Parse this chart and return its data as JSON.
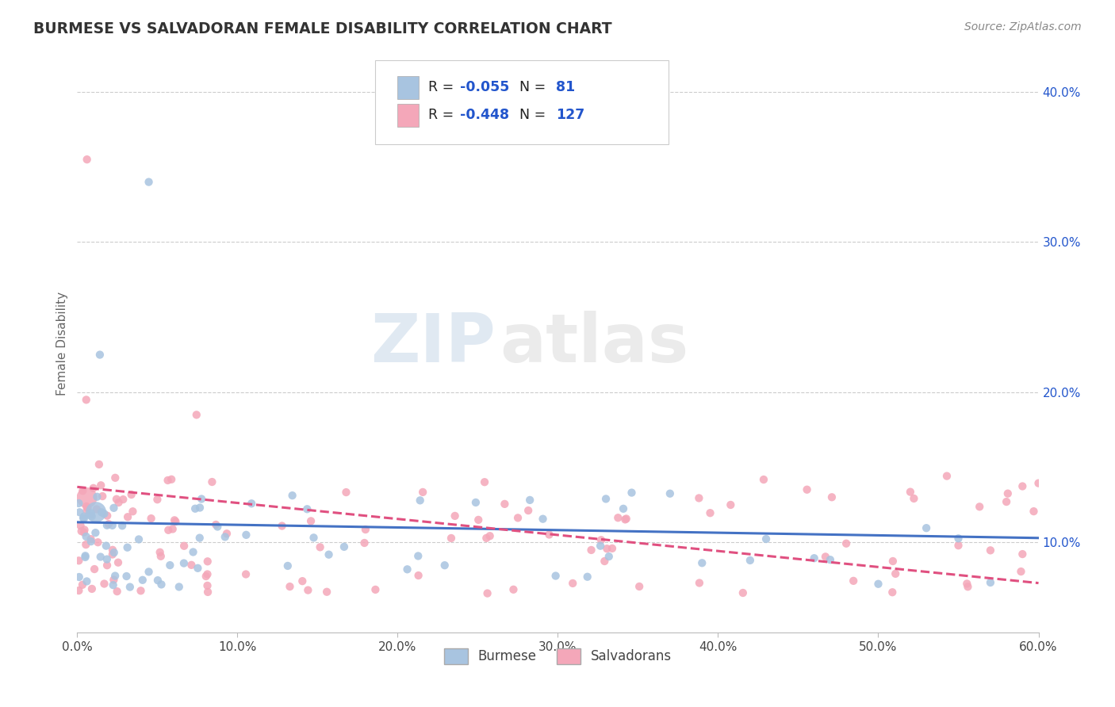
{
  "title": "BURMESE VS SALVADORAN FEMALE DISABILITY CORRELATION CHART",
  "source": "Source: ZipAtlas.com",
  "ylabel": "Female Disability",
  "xlim": [
    0.0,
    0.6
  ],
  "ylim": [
    0.04,
    0.425
  ],
  "xtick_labels": [
    "0.0%",
    "10.0%",
    "20.0%",
    "30.0%",
    "40.0%",
    "50.0%",
    "60.0%"
  ],
  "xtick_vals": [
    0.0,
    0.1,
    0.2,
    0.3,
    0.4,
    0.5,
    0.6
  ],
  "ytick_labels": [
    "10.0%",
    "20.0%",
    "30.0%",
    "40.0%"
  ],
  "ytick_vals": [
    0.1,
    0.2,
    0.3,
    0.4
  ],
  "burmese_color": "#a8c4e0",
  "salvadoran_color": "#f4a7b9",
  "burmese_line_color": "#4472c4",
  "salvadoran_line_color": "#e05080",
  "burmese_R": -0.055,
  "burmese_N": 81,
  "salvadoran_R": -0.448,
  "salvadoran_N": 127,
  "legend_label_1": "Burmese",
  "legend_label_2": "Salvadorans",
  "watermark_zip": "ZIP",
  "watermark_atlas": "atlas",
  "background_color": "#ffffff",
  "grid_color": "#cccccc",
  "accent_color": "#2255cc"
}
